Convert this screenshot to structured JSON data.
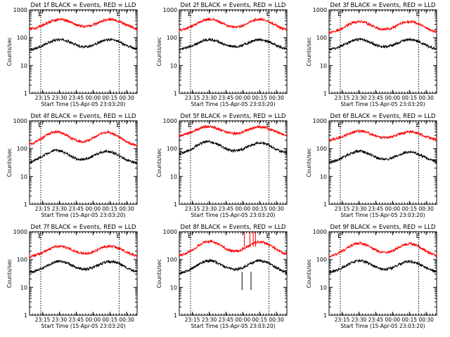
{
  "figure": {
    "ylabel": "Counts/sec",
    "xlabel": "Start Time (15-Apr-05 23:03:20)",
    "x_tick_labels": [
      "23:15",
      "23:30",
      "23:45",
      "00:00",
      "00:15",
      "00:30"
    ],
    "y_tick_labels": [
      "1",
      "10",
      "100",
      "1000"
    ],
    "marker_labels": [
      "E",
      "E"
    ],
    "colors": {
      "events": "#000000",
      "lld": "#ff0000",
      "axes": "#000000",
      "background": "#ffffff"
    }
  },
  "chart_data": [
    {
      "type": "line",
      "title": "Det 1f BLACK = Events, RED = LLD",
      "xlabel": "Start Time (15-Apr-05 23:03:20)",
      "ylabel": "Counts/sec",
      "x_range_min_after_start": [
        0,
        96
      ],
      "ylim": [
        1,
        1000
      ],
      "y_scale": "log",
      "markers_min_after_start": [
        10,
        80
      ],
      "series": [
        {
          "name": "Events",
          "baseline": 35,
          "peaks": [
            85,
            85
          ],
          "peak_at_min": [
            27,
            72
          ]
        },
        {
          "name": "LLD",
          "baseline": 190,
          "peaks": [
            450,
            450
          ],
          "peak_at_min": [
            27,
            72
          ]
        }
      ]
    },
    {
      "type": "line",
      "title": "Det 2f BLACK = Events, RED = LLD",
      "xlabel": "Start Time (15-Apr-05 23:03:20)",
      "ylabel": "Counts/sec",
      "x_range_min_after_start": [
        0,
        96
      ],
      "ylim": [
        1,
        1000
      ],
      "y_scale": "log",
      "markers_min_after_start": [
        10,
        80
      ],
      "series": [
        {
          "name": "Events",
          "baseline": 35,
          "peaks": [
            85,
            85
          ],
          "peak_at_min": [
            27,
            72
          ]
        },
        {
          "name": "LLD",
          "baseline": 170,
          "peaks": [
            460,
            460
          ],
          "peak_at_min": [
            27,
            72
          ]
        }
      ]
    },
    {
      "type": "line",
      "title": "Det 3f BLACK = Events, RED = LLD",
      "xlabel": "Start Time (15-Apr-05 23:03:20)",
      "ylabel": "Counts/sec",
      "x_range_min_after_start": [
        0,
        96
      ],
      "ylim": [
        1,
        1000
      ],
      "y_scale": "log",
      "markers_min_after_start": [
        10,
        80
      ],
      "series": [
        {
          "name": "Events",
          "baseline": 35,
          "peaks": [
            85,
            85
          ],
          "peak_at_min": [
            27,
            72
          ]
        },
        {
          "name": "LLD",
          "baseline": 140,
          "peaks": [
            380,
            380
          ],
          "peak_at_min": [
            27,
            72
          ]
        }
      ]
    },
    {
      "type": "line",
      "title": "Det 4f BLACK = Events, RED = LLD",
      "xlabel": "Start Time (15-Apr-05 23:03:20)",
      "ylabel": "Counts/sec",
      "x_range_min_after_start": [
        0,
        96
      ],
      "ylim": [
        1,
        1000
      ],
      "y_scale": "log",
      "markers_min_after_start": [
        10,
        80
      ],
      "series": [
        {
          "name": "Events",
          "baseline": 28,
          "peaks": [
            85,
            80
          ],
          "peak_at_min": [
            24,
            69
          ]
        },
        {
          "name": "LLD",
          "baseline": 120,
          "peaks": [
            400,
            380
          ],
          "peak_at_min": [
            24,
            69
          ]
        }
      ]
    },
    {
      "type": "line",
      "title": "Det 5f BLACK = Events, RED = LLD",
      "xlabel": "Start Time (15-Apr-05 23:03:20)",
      "ylabel": "Counts/sec",
      "x_range_min_after_start": [
        0,
        96
      ],
      "ylim": [
        1,
        1000
      ],
      "y_scale": "log",
      "markers_min_after_start": [
        10,
        80
      ],
      "series": [
        {
          "name": "Events",
          "baseline": 60,
          "peaks": [
            175,
            160
          ],
          "peak_at_min": [
            26,
            72
          ]
        },
        {
          "name": "LLD",
          "baseline": 270,
          "peaks": [
            610,
            600
          ],
          "peak_at_min": [
            26,
            72
          ]
        }
      ]
    },
    {
      "type": "line",
      "title": "Det 6f BLACK = Events, RED = LLD",
      "xlabel": "Start Time (15-Apr-05 23:03:20)",
      "ylabel": "Counts/sec",
      "x_range_min_after_start": [
        0,
        96
      ],
      "ylim": [
        1,
        1000
      ],
      "y_scale": "log",
      "markers_min_after_start": [
        10,
        80
      ],
      "series": [
        {
          "name": "Events",
          "baseline": 30,
          "peaks": [
            80,
            75
          ],
          "peak_at_min": [
            27,
            72
          ]
        },
        {
          "name": "LLD",
          "baseline": 190,
          "peaks": [
            420,
            400
          ],
          "peak_at_min": [
            27,
            72
          ]
        }
      ]
    },
    {
      "type": "line",
      "title": "Det 7f BLACK = Events, RED = LLD",
      "xlabel": "Start Time (15-Apr-05 23:03:20)",
      "ylabel": "Counts/sec",
      "x_range_min_after_start": [
        0,
        96
      ],
      "ylim": [
        1,
        1000
      ],
      "y_scale": "log",
      "markers_min_after_start": [
        10,
        80
      ],
      "series": [
        {
          "name": "Events",
          "baseline": 32,
          "peaks": [
            85,
            85
          ],
          "peak_at_min": [
            27,
            72
          ]
        },
        {
          "name": "LLD",
          "baseline": 120,
          "peaks": [
            300,
            300
          ],
          "peak_at_min": [
            27,
            72
          ]
        }
      ]
    },
    {
      "type": "line",
      "title": "Det 8f BLACK = Events, RED = LLD",
      "xlabel": "Start Time (15-Apr-05 23:03:20)",
      "ylabel": "Counts/sec",
      "x_range_min_after_start": [
        0,
        96
      ],
      "ylim": [
        1,
        1000
      ],
      "y_scale": "log",
      "markers_min_after_start": [
        10,
        80
      ],
      "series": [
        {
          "name": "Events",
          "baseline": 30,
          "peaks": [
            90,
            90
          ],
          "peak_at_min": [
            27,
            72
          ],
          "dips_at_min": [
            56,
            64
          ],
          "dip_value": 8
        },
        {
          "name": "LLD",
          "baseline": 130,
          "peaks": [
            450,
            430
          ],
          "peak_at_min": [
            27,
            72
          ],
          "spikes_at_min": [
            58,
            63,
            66,
            68
          ],
          "spike_value": 1000
        }
      ]
    },
    {
      "type": "line",
      "title": "Det 9f BLACK = Events, RED = LLD",
      "xlabel": "Start Time (15-Apr-05 23:03:20)",
      "ylabel": "Counts/sec",
      "x_range_min_after_start": [
        0,
        96
      ],
      "ylim": [
        1,
        1000
      ],
      "y_scale": "log",
      "markers_min_after_start": [
        10,
        80
      ],
      "series": [
        {
          "name": "Events",
          "baseline": 32,
          "peaks": [
            90,
            85
          ],
          "peak_at_min": [
            27,
            72
          ]
        },
        {
          "name": "LLD",
          "baseline": 120,
          "peaks": [
            380,
            370
          ],
          "peak_at_min": [
            27,
            72
          ]
        }
      ]
    }
  ]
}
